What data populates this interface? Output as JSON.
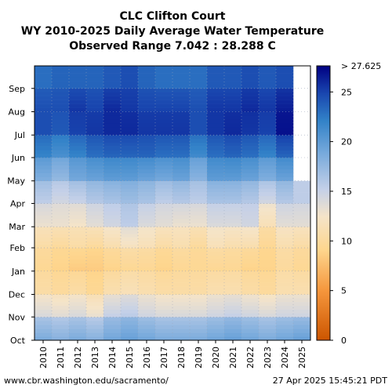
{
  "chart_data": {
    "type": "heatmap",
    "title_lines": [
      "CLC Clifton Court",
      "WY 2010-2025 Daily Average Water Temperature",
      "Observed Range 7.042 : 28.288 C"
    ],
    "x_categories": [
      "2010",
      "2011",
      "2012",
      "2013",
      "2014",
      "2015",
      "2016",
      "2017",
      "2018",
      "2019",
      "2020",
      "2021",
      "2022",
      "2023",
      "2024",
      "2025"
    ],
    "y_categories": [
      "Oct",
      "Nov",
      "Dec",
      "Jan",
      "Feb",
      "Mar",
      "Apr",
      "May",
      "Jun",
      "Jul",
      "Aug",
      "Sep"
    ],
    "colorbar": {
      "min": 0,
      "max": 27.625,
      "top_label": "> 27.625",
      "ticks": [
        0,
        5,
        10,
        15,
        20,
        25
      ],
      "tick_labels": [
        "0",
        "5",
        "10",
        "15",
        "20",
        "25"
      ]
    },
    "monthly_mean_temperature_c": {
      "note_units": "C",
      "months": [
        "Oct",
        "Nov",
        "Dec",
        "Jan",
        "Feb",
        "Mar",
        "Apr",
        "May",
        "Jun",
        "Jul",
        "Aug",
        "Sep"
      ],
      "series": [
        {
          "year": "2010",
          "values": [
            18.5,
            14.0,
            10.5,
            9.5,
            10.5,
            13.0,
            15.5,
            18.5,
            22.0,
            24.5,
            24.5,
            23.0
          ]
        },
        {
          "year": "2011",
          "values": [
            18.0,
            13.5,
            10.0,
            9.0,
            10.0,
            13.0,
            14.5,
            17.5,
            21.0,
            24.0,
            24.5,
            23.5
          ]
        },
        {
          "year": "2012",
          "values": [
            18.5,
            14.0,
            10.5,
            8.5,
            10.5,
            12.5,
            15.0,
            19.0,
            22.0,
            25.0,
            25.5,
            23.5
          ]
        },
        {
          "year": "2013",
          "values": [
            18.0,
            13.0,
            9.5,
            8.5,
            10.0,
            13.5,
            16.0,
            19.5,
            23.0,
            25.5,
            25.0,
            23.5
          ]
        },
        {
          "year": "2014",
          "values": [
            19.0,
            15.0,
            11.0,
            9.0,
            11.0,
            14.5,
            16.5,
            20.0,
            23.5,
            26.0,
            26.0,
            24.0
          ]
        },
        {
          "year": "2015",
          "values": [
            19.5,
            15.5,
            11.5,
            9.5,
            12.0,
            15.5,
            17.0,
            20.0,
            23.5,
            26.0,
            25.5,
            24.5
          ]
        },
        {
          "year": "2016",
          "values": [
            19.0,
            14.5,
            11.0,
            9.5,
            11.5,
            14.0,
            16.5,
            19.5,
            23.5,
            25.5,
            25.0,
            23.5
          ]
        },
        {
          "year": "2017",
          "values": [
            18.5,
            14.0,
            10.5,
            9.0,
            10.5,
            13.5,
            15.5,
            19.0,
            23.0,
            25.5,
            25.0,
            23.0
          ]
        },
        {
          "year": "2018",
          "values": [
            18.5,
            14.0,
            10.5,
            9.5,
            11.0,
            13.0,
            16.0,
            19.5,
            23.0,
            25.5,
            25.0,
            23.0
          ]
        },
        {
          "year": "2019",
          "values": [
            18.5,
            14.0,
            10.5,
            9.5,
            10.0,
            13.0,
            15.5,
            18.0,
            21.5,
            24.5,
            24.5,
            23.0
          ]
        },
        {
          "year": "2020",
          "values": [
            19.0,
            14.5,
            11.0,
            9.5,
            11.5,
            14.0,
            16.5,
            20.0,
            23.0,
            25.5,
            25.5,
            24.0
          ]
        },
        {
          "year": "2021",
          "values": [
            19.5,
            15.0,
            11.0,
            9.5,
            11.0,
            14.0,
            16.5,
            20.0,
            23.5,
            26.0,
            25.5,
            24.0
          ]
        },
        {
          "year": "2022",
          "values": [
            19.0,
            14.5,
            10.5,
            9.0,
            11.0,
            14.5,
            16.0,
            19.5,
            23.0,
            25.5,
            26.0,
            24.5
          ]
        },
        {
          "year": "2023",
          "values": [
            18.5,
            14.0,
            10.0,
            9.0,
            9.5,
            11.5,
            14.5,
            18.5,
            22.0,
            25.0,
            25.5,
            24.0
          ]
        },
        {
          "year": "2024",
          "values": [
            19.0,
            14.5,
            11.0,
            10.0,
            11.0,
            13.5,
            16.0,
            19.5,
            23.5,
            27.0,
            26.5,
            24.5
          ]
        },
        {
          "year": "2025",
          "values": [
            19.5,
            14.5,
            11.0,
            9.5,
            10.5,
            13.5,
            15.5,
            null,
            null,
            null,
            null,
            null
          ]
        }
      ]
    }
  },
  "footer": {
    "source": "www.cbr.washington.edu/sacramento/",
    "timestamp": "27 Apr 2025 15:45:21 PDT"
  }
}
